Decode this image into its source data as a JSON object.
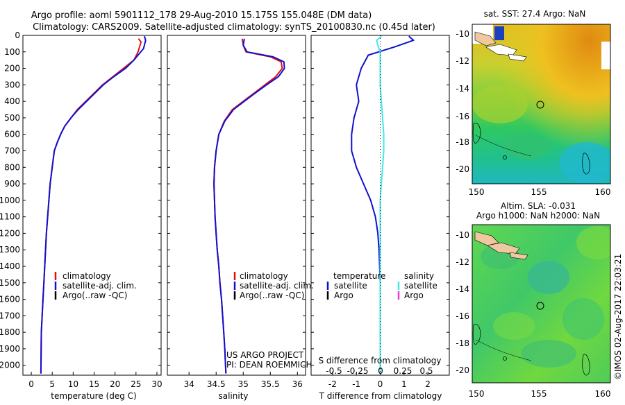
{
  "header": {
    "line1": "Argo profile: aoml 5901112_178 29-Aug-2010 15.175S 155.048E (DM data)",
    "line2": "Climatology: CARS2009. Satellite-adjusted climatology: synTS_20100830.nc (0.45d later)"
  },
  "colors": {
    "climatology": "#e01010",
    "satellite": "#1010d0",
    "argo": "#000000",
    "salinity_satellite": "#40e8e8",
    "salinity_argo": "#e040d0"
  },
  "legend_profiles": {
    "climatology": "climatology",
    "satellite": "satellite-adj. clim.",
    "argo": "Argo(..raw -QC)"
  },
  "legend_diff": {
    "temp_header": "temperature",
    "sal_header": "salinity",
    "satellite": "satellite",
    "argo": "Argo"
  },
  "annotations": {
    "project": "US ARGO PROJECT",
    "pi": "PI: DEAN ROEMMICH",
    "sdiff_title": "S difference from climatology",
    "sdiff_ticks": [
      "-0.5",
      "-0.25",
      "0",
      "0.25",
      "0.5"
    ],
    "credit": "©IMOS 02-Aug-2017 22:03:21"
  },
  "maps": {
    "sst": {
      "title": "sat. SST: 27.4 Argo: NaN",
      "xticks": [
        "150",
        "155",
        "160"
      ],
      "yticks": [
        "-10",
        "-12",
        "-14",
        "-16",
        "-18",
        "-20"
      ]
    },
    "sla": {
      "title1": "Altim. SLA: -0.031",
      "title2": "Argo h1000: NaN h2000: NaN",
      "xticks": [
        "150",
        "155",
        "160"
      ],
      "yticks": [
        "-10",
        "-12",
        "-14",
        "-16",
        "-18",
        "-20"
      ]
    }
  },
  "chart_data": [
    {
      "type": "line",
      "xlabel": "temperature (deg C)",
      "ylabel": "",
      "xlim": [
        -2,
        31
      ],
      "ylim": [
        2060,
        0
      ],
      "xticks": [
        0,
        5,
        10,
        15,
        20,
        25,
        30
      ],
      "yticks": [
        0,
        100,
        200,
        300,
        400,
        500,
        600,
        700,
        800,
        900,
        1000,
        1100,
        1200,
        1300,
        1400,
        1500,
        1600,
        1700,
        1800,
        1900,
        2000
      ],
      "series": [
        {
          "name": "climatology",
          "color": "#e01010",
          "x": [
            25.6,
            26.2,
            25.5,
            24.5,
            22.0,
            19.5,
            17.0,
            15.0,
            13.0,
            11.0,
            9.5,
            8.0,
            7.0,
            6.2,
            5.5,
            5.0,
            4.5,
            4.2,
            3.9,
            3.6,
            3.4,
            3.2,
            3.0,
            2.8,
            2.6,
            2.4,
            2.3
          ],
          "y": [
            20,
            40,
            100,
            150,
            200,
            250,
            300,
            350,
            400,
            450,
            500,
            550,
            600,
            650,
            700,
            800,
            900,
            1000,
            1100,
            1200,
            1300,
            1400,
            1500,
            1600,
            1700,
            1800,
            2050
          ]
        },
        {
          "name": "satellite-adj. clim.",
          "color": "#1010d0",
          "x": [
            27.0,
            27.3,
            26.8,
            24.5,
            22.5,
            19.7,
            17.2,
            15.2,
            13.2,
            11.2,
            9.5,
            8.0,
            7.0,
            6.2,
            5.5,
            5.0,
            4.5,
            4.2,
            3.9,
            3.6,
            3.4,
            3.2,
            3.0,
            2.8,
            2.6,
            2.4,
            2.3
          ],
          "y": [
            5,
            30,
            80,
            150,
            200,
            250,
            300,
            350,
            400,
            450,
            500,
            550,
            600,
            650,
            700,
            800,
            900,
            1000,
            1100,
            1200,
            1300,
            1400,
            1500,
            1600,
            1700,
            1800,
            2050
          ]
        }
      ]
    },
    {
      "type": "line",
      "xlabel": "salinity",
      "ylabel": "",
      "xlim": [
        33.6,
        36.15
      ],
      "ylim": [
        2060,
        0
      ],
      "xticks": [
        34,
        34.5,
        35,
        35.5,
        36
      ],
      "series": [
        {
          "name": "climatology",
          "color": "#e01010",
          "x": [
            34.98,
            35.0,
            35.05,
            35.5,
            35.7,
            35.72,
            35.6,
            35.4,
            35.2,
            35.0,
            34.8,
            34.65,
            34.55,
            34.5,
            34.47,
            34.46,
            34.47,
            34.48,
            34.5,
            34.52,
            34.55,
            34.57,
            34.6,
            34.62,
            34.64,
            34.66,
            34.68
          ],
          "y": [
            20,
            60,
            100,
            130,
            160,
            200,
            250,
            300,
            350,
            400,
            450,
            520,
            600,
            700,
            800,
            900,
            1000,
            1100,
            1200,
            1300,
            1400,
            1500,
            1600,
            1700,
            1800,
            1900,
            2050
          ]
        },
        {
          "name": "satellite-adj. clim.",
          "color": "#1010d0",
          "x": [
            35.02,
            35.0,
            35.07,
            35.55,
            35.75,
            35.76,
            35.65,
            35.43,
            35.22,
            35.02,
            34.82,
            34.66,
            34.55,
            34.5,
            34.47,
            34.46,
            34.47,
            34.48,
            34.5,
            34.52,
            34.55,
            34.57,
            34.6,
            34.62,
            34.64,
            34.66,
            34.68
          ],
          "y": [
            20,
            60,
            100,
            130,
            160,
            200,
            250,
            300,
            350,
            400,
            450,
            520,
            600,
            700,
            800,
            900,
            1000,
            1100,
            1200,
            1300,
            1400,
            1500,
            1600,
            1700,
            1800,
            1900,
            2050
          ]
        }
      ]
    },
    {
      "type": "line",
      "xlabel": "T difference from climatology",
      "ylabel": "",
      "xlim": [
        -2.9,
        2.9
      ],
      "ylim": [
        2060,
        0
      ],
      "xticks": [
        -2,
        -1,
        0,
        1,
        2
      ],
      "series": [
        {
          "name": "temperature satellite",
          "color": "#1010d0",
          "x": [
            1.2,
            1.4,
            0.6,
            -0.5,
            -0.8,
            -1.0,
            -0.9,
            -1.1,
            -1.2,
            -1.2,
            -1.0,
            -0.7,
            -0.4,
            -0.2,
            -0.1,
            -0.05,
            0,
            0
          ],
          "y": [
            5,
            30,
            70,
            120,
            200,
            300,
            400,
            500,
            600,
            700,
            800,
            900,
            1000,
            1100,
            1200,
            1300,
            1500,
            2050
          ]
        },
        {
          "name": "salinity satellite",
          "color": "#40e8e8",
          "x": [
            0.05,
            -0.15,
            -0.1,
            0,
            0,
            0,
            0.05,
            0.1,
            0.15,
            0.15,
            0.1,
            0.05,
            0,
            0,
            0
          ],
          "y": [
            5,
            30,
            60,
            100,
            200,
            300,
            400,
            500,
            600,
            700,
            800,
            900,
            1000,
            1500,
            2050
          ]
        }
      ]
    }
  ]
}
